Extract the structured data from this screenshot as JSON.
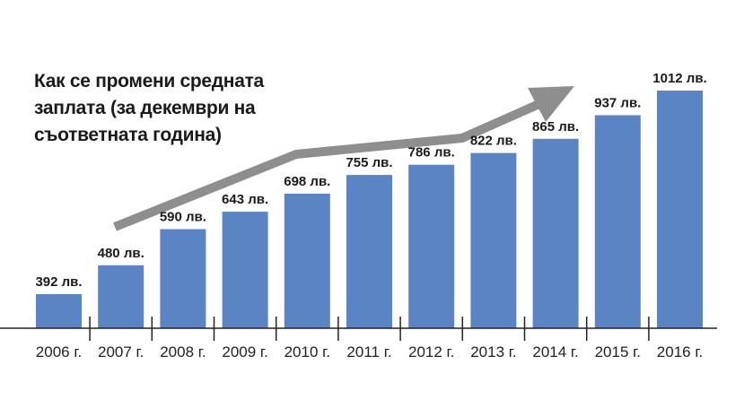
{
  "title": {
    "lines": [
      "Как се промени средната",
      "заплата (за декември на",
      "съответната година)"
    ]
  },
  "colors": {
    "bar": "#5b84c4",
    "arrow": "#8e8e8e",
    "axis": "#222222",
    "text": "#1a1a1a"
  },
  "chart_data": {
    "type": "bar",
    "title": "Как се промени средната заплата (за декември на съответната година)",
    "xlabel": "",
    "ylabel": "",
    "unit": "лв.",
    "categories": [
      "2006 г.",
      "2007 г.",
      "2008 г.",
      "2009 г.",
      "2010 г.",
      "2011 г.",
      "2012 г.",
      "2013 г.",
      "2014 г.",
      "2015 г.",
      "2016 г."
    ],
    "values": [
      392,
      480,
      590,
      643,
      698,
      755,
      786,
      822,
      865,
      937,
      1012
    ],
    "value_labels": [
      "392 лв.",
      "480 лв.",
      "590 лв.",
      "643 лв.",
      "698 лв.",
      "755 лв.",
      "786 лв.",
      "822 лв.",
      "865 лв.",
      "937 лв.",
      "1012 лв."
    ],
    "grid": false,
    "legend": "none",
    "annotations": [
      "upward trend arrow"
    ]
  }
}
